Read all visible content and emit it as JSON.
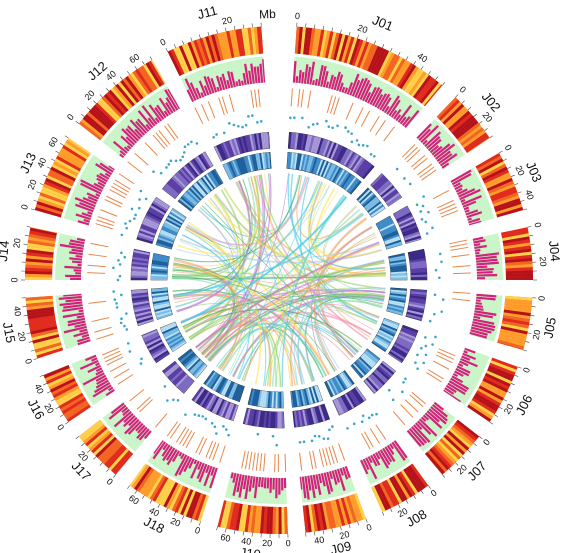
{
  "unit_label": "Mb",
  "chromosomes": [
    {
      "name": "J01",
      "ticks": [
        "0",
        "20",
        "40"
      ]
    },
    {
      "name": "J02",
      "ticks": [
        "0",
        "20"
      ]
    },
    {
      "name": "J03",
      "ticks": [
        "0",
        "20",
        "40"
      ]
    },
    {
      "name": "J04",
      "ticks": [
        "0",
        "20"
      ]
    },
    {
      "name": "J05",
      "ticks": [
        "0",
        "20"
      ]
    },
    {
      "name": "J06",
      "ticks": [
        "0",
        "20"
      ]
    },
    {
      "name": "J07",
      "ticks": [
        "0",
        "20"
      ]
    },
    {
      "name": "J08",
      "ticks": [
        "0",
        "20"
      ]
    },
    {
      "name": "J09",
      "ticks": [
        "0",
        "20",
        "40"
      ]
    },
    {
      "name": "J10",
      "ticks": [
        "0",
        "20",
        "40",
        "60"
      ]
    },
    {
      "name": "J18",
      "ticks": [
        "0",
        "20",
        "40",
        "60"
      ]
    },
    {
      "name": "J17",
      "ticks": [
        "0",
        "20"
      ]
    },
    {
      "name": "J16",
      "ticks": [
        "0",
        "20",
        "40"
      ]
    },
    {
      "name": "J15",
      "ticks": [
        "0",
        "20",
        "40"
      ]
    },
    {
      "name": "J14",
      "ticks": [
        "0",
        "20"
      ]
    },
    {
      "name": "J13",
      "ticks": [
        "0",
        "20",
        "40",
        "60"
      ]
    },
    {
      "name": "J12",
      "ticks": [
        "0",
        "20",
        "40",
        "60"
      ]
    },
    {
      "name": "J11",
      "ticks": [
        "0",
        "20"
      ]
    }
  ],
  "colors": {
    "heat": [
      "#ffd24a",
      "#ff9e2c",
      "#f26522",
      "#e02b1f",
      "#b5121b"
    ],
    "histogram": "#d4227c",
    "histogram_bg": "#c9f5c9",
    "gc_track": "#e8874a",
    "dots": "#3aa6c8",
    "purple_band": [
      "#3b2a86",
      "#5b3fa6",
      "#7f6cc4",
      "#a89ad8"
    ],
    "blue_band": [
      "#1f5f99",
      "#3f8cc9",
      "#7dbde6",
      "#b9e0f4"
    ],
    "links": [
      "#ffe14d",
      "#7fe3b0",
      "#43c8e8",
      "#f4a261",
      "#b56fd6",
      "#8fd16a",
      "#2ea05a",
      "#f28fb3",
      "#9ecbf0"
    ]
  }
}
